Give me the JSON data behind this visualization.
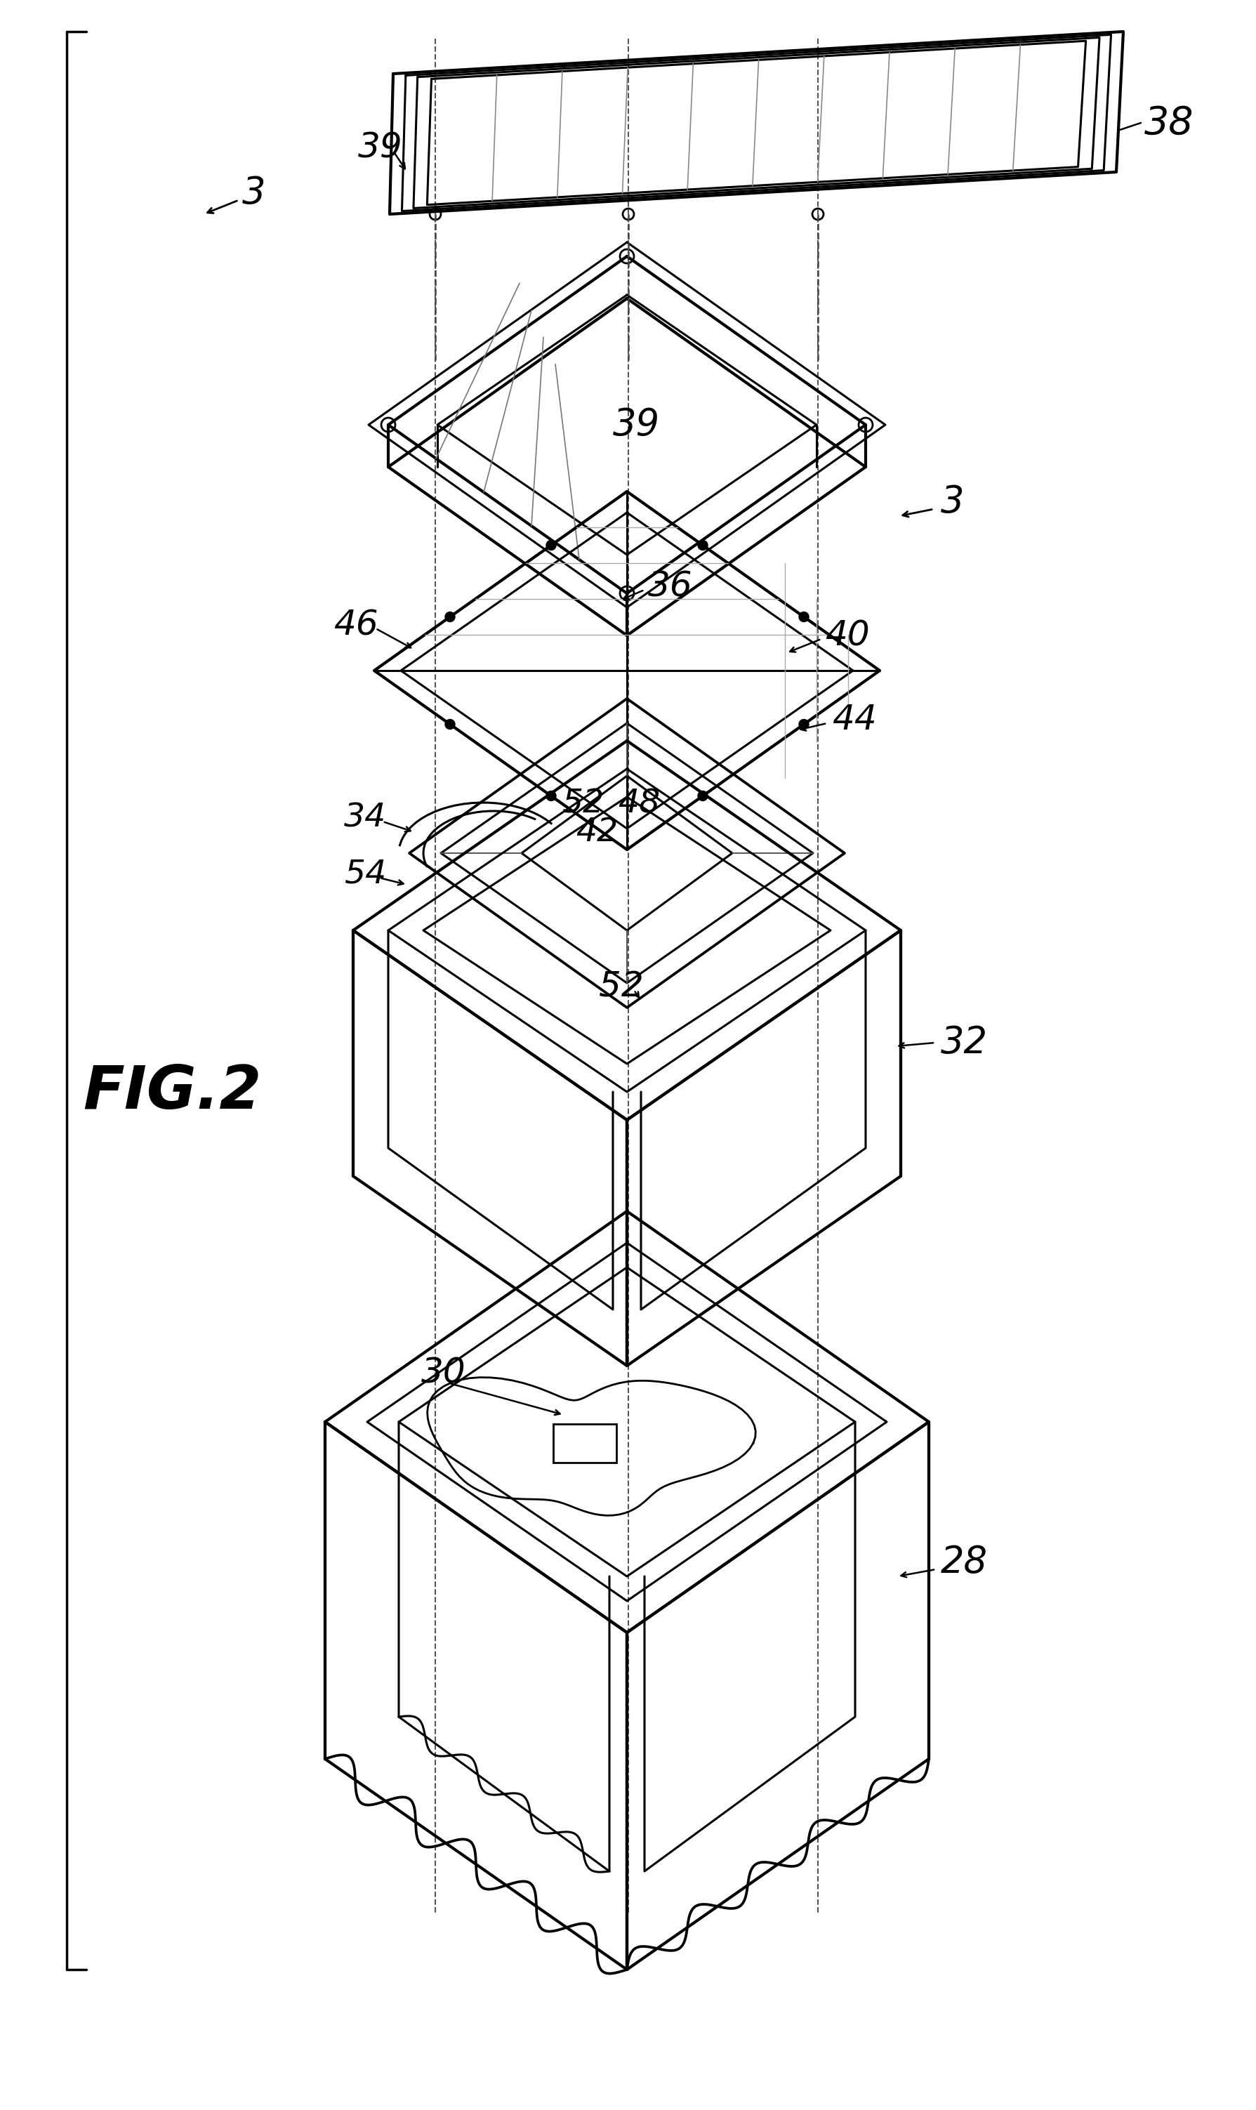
{
  "bg_color": "#ffffff",
  "line_color": "#000000",
  "fig_label": "FIG.2",
  "lw_main": 2.2,
  "lw_thin": 1.4,
  "lw_thick": 3.0
}
